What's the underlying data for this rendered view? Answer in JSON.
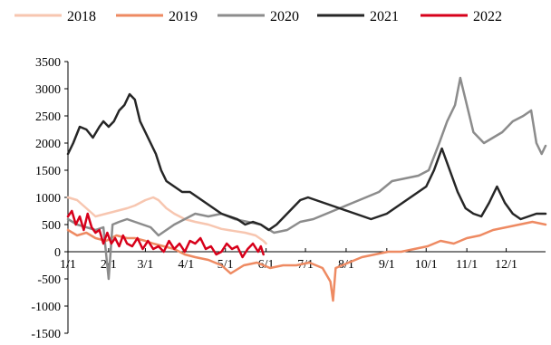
{
  "chart_data": {
    "type": "line",
    "x_ticks": [
      "1/1",
      "2/1",
      "3/1",
      "4/1",
      "5/1",
      "6/1",
      "7/1",
      "8/1",
      "9/1",
      "10/1",
      "11/1",
      "12/1"
    ],
    "x_domain": [
      1,
      365
    ],
    "ylim": [
      -1500,
      3500
    ],
    "y_ticks": [
      -1500,
      -1000,
      -500,
      0,
      500,
      1000,
      1500,
      2000,
      2500,
      3000,
      3500
    ],
    "legend_position": "top",
    "grid": false,
    "series": [
      {
        "name": "2018",
        "color": "#F7C6B0",
        "points": [
          [
            1,
            1000
          ],
          [
            8,
            950
          ],
          [
            15,
            800
          ],
          [
            22,
            650
          ],
          [
            30,
            700
          ],
          [
            38,
            750
          ],
          [
            46,
            800
          ],
          [
            52,
            850
          ],
          [
            60,
            950
          ],
          [
            66,
            1000
          ],
          [
            70,
            950
          ],
          [
            76,
            800
          ],
          [
            82,
            700
          ],
          [
            90,
            600
          ],
          [
            98,
            550
          ],
          [
            108,
            500
          ],
          [
            118,
            420
          ],
          [
            128,
            380
          ],
          [
            136,
            350
          ],
          [
            144,
            300
          ],
          [
            150,
            200
          ],
          [
            152,
            150
          ]
        ]
      },
      {
        "name": "2019",
        "color": "#EE8A62",
        "points": [
          [
            1,
            400
          ],
          [
            8,
            300
          ],
          [
            15,
            350
          ],
          [
            22,
            250
          ],
          [
            30,
            200
          ],
          [
            38,
            300
          ],
          [
            46,
            250
          ],
          [
            52,
            250
          ],
          [
            60,
            200
          ],
          [
            66,
            150
          ],
          [
            74,
            100
          ],
          [
            82,
            50
          ],
          [
            90,
            -50
          ],
          [
            98,
            -100
          ],
          [
            108,
            -150
          ],
          [
            118,
            -250
          ],
          [
            125,
            -400
          ],
          [
            135,
            -250
          ],
          [
            145,
            -200
          ],
          [
            155,
            -300
          ],
          [
            165,
            -250
          ],
          [
            175,
            -250
          ],
          [
            185,
            -200
          ],
          [
            195,
            -300
          ],
          [
            201,
            -550
          ],
          [
            203,
            -900
          ],
          [
            205,
            -300
          ],
          [
            215,
            -200
          ],
          [
            225,
            -100
          ],
          [
            235,
            -50
          ],
          [
            245,
            0
          ],
          [
            255,
            0
          ],
          [
            265,
            50
          ],
          [
            275,
            100
          ],
          [
            285,
            200
          ],
          [
            295,
            150
          ],
          [
            305,
            250
          ],
          [
            315,
            300
          ],
          [
            325,
            400
          ],
          [
            335,
            450
          ],
          [
            345,
            500
          ],
          [
            355,
            550
          ],
          [
            365,
            500
          ]
        ]
      },
      {
        "name": "2020",
        "color": "#8C8C8C",
        "points": [
          [
            1,
            600
          ],
          [
            8,
            500
          ],
          [
            15,
            450
          ],
          [
            22,
            400
          ],
          [
            28,
            450
          ],
          [
            32,
            -500
          ],
          [
            35,
            500
          ],
          [
            40,
            550
          ],
          [
            46,
            600
          ],
          [
            52,
            550
          ],
          [
            58,
            500
          ],
          [
            64,
            450
          ],
          [
            70,
            300
          ],
          [
            76,
            400
          ],
          [
            82,
            500
          ],
          [
            90,
            600
          ],
          [
            98,
            700
          ],
          [
            108,
            650
          ],
          [
            118,
            700
          ],
          [
            128,
            600
          ],
          [
            138,
            550
          ],
          [
            148,
            500
          ],
          [
            158,
            350
          ],
          [
            168,
            400
          ],
          [
            178,
            550
          ],
          [
            188,
            600
          ],
          [
            198,
            700
          ],
          [
            208,
            800
          ],
          [
            218,
            900
          ],
          [
            228,
            1000
          ],
          [
            238,
            1100
          ],
          [
            248,
            1300
          ],
          [
            258,
            1350
          ],
          [
            268,
            1400
          ],
          [
            276,
            1500
          ],
          [
            284,
            2000
          ],
          [
            290,
            2400
          ],
          [
            296,
            2700
          ],
          [
            300,
            3200
          ],
          [
            304,
            2800
          ],
          [
            310,
            2200
          ],
          [
            318,
            2000
          ],
          [
            325,
            2100
          ],
          [
            332,
            2200
          ],
          [
            340,
            2400
          ],
          [
            348,
            2500
          ],
          [
            354,
            2600
          ],
          [
            358,
            2000
          ],
          [
            362,
            1800
          ],
          [
            365,
            1950
          ]
        ]
      },
      {
        "name": "2021",
        "color": "#262626",
        "points": [
          [
            1,
            1800
          ],
          [
            5,
            2000
          ],
          [
            10,
            2300
          ],
          [
            15,
            2250
          ],
          [
            20,
            2100
          ],
          [
            25,
            2300
          ],
          [
            28,
            2400
          ],
          [
            32,
            2300
          ],
          [
            36,
            2400
          ],
          [
            40,
            2600
          ],
          [
            44,
            2700
          ],
          [
            48,
            2900
          ],
          [
            52,
            2800
          ],
          [
            56,
            2400
          ],
          [
            60,
            2200
          ],
          [
            64,
            2000
          ],
          [
            68,
            1800
          ],
          [
            72,
            1500
          ],
          [
            76,
            1300
          ],
          [
            82,
            1200
          ],
          [
            88,
            1100
          ],
          [
            94,
            1100
          ],
          [
            100,
            1000
          ],
          [
            106,
            900
          ],
          [
            112,
            800
          ],
          [
            118,
            700
          ],
          [
            124,
            650
          ],
          [
            130,
            600
          ],
          [
            136,
            500
          ],
          [
            142,
            550
          ],
          [
            148,
            500
          ],
          [
            154,
            400
          ],
          [
            160,
            500
          ],
          [
            166,
            650
          ],
          [
            172,
            800
          ],
          [
            178,
            950
          ],
          [
            184,
            1000
          ],
          [
            190,
            950
          ],
          [
            196,
            900
          ],
          [
            202,
            850
          ],
          [
            208,
            800
          ],
          [
            214,
            750
          ],
          [
            220,
            700
          ],
          [
            226,
            650
          ],
          [
            232,
            600
          ],
          [
            238,
            650
          ],
          [
            244,
            700
          ],
          [
            250,
            800
          ],
          [
            256,
            900
          ],
          [
            262,
            1000
          ],
          [
            268,
            1100
          ],
          [
            274,
            1200
          ],
          [
            280,
            1500
          ],
          [
            286,
            1900
          ],
          [
            292,
            1500
          ],
          [
            298,
            1100
          ],
          [
            304,
            800
          ],
          [
            310,
            700
          ],
          [
            316,
            650
          ],
          [
            322,
            900
          ],
          [
            328,
            1200
          ],
          [
            334,
            900
          ],
          [
            340,
            700
          ],
          [
            346,
            600
          ],
          [
            352,
            650
          ],
          [
            358,
            700
          ],
          [
            365,
            700
          ]
        ]
      },
      {
        "name": "2022",
        "color": "#D7001A",
        "points": [
          [
            1,
            650
          ],
          [
            4,
            750
          ],
          [
            7,
            500
          ],
          [
            10,
            650
          ],
          [
            13,
            400
          ],
          [
            16,
            700
          ],
          [
            19,
            450
          ],
          [
            22,
            350
          ],
          [
            25,
            400
          ],
          [
            28,
            150
          ],
          [
            31,
            350
          ],
          [
            34,
            150
          ],
          [
            37,
            250
          ],
          [
            40,
            100
          ],
          [
            43,
            300
          ],
          [
            46,
            150
          ],
          [
            50,
            100
          ],
          [
            54,
            250
          ],
          [
            58,
            50
          ],
          [
            62,
            200
          ],
          [
            66,
            50
          ],
          [
            70,
            100
          ],
          [
            74,
            0
          ],
          [
            78,
            200
          ],
          [
            82,
            50
          ],
          [
            86,
            150
          ],
          [
            90,
            0
          ],
          [
            94,
            200
          ],
          [
            98,
            150
          ],
          [
            102,
            250
          ],
          [
            106,
            50
          ],
          [
            110,
            100
          ],
          [
            114,
            -50
          ],
          [
            118,
            0
          ],
          [
            122,
            150
          ],
          [
            126,
            50
          ],
          [
            130,
            100
          ],
          [
            134,
            -100
          ],
          [
            138,
            50
          ],
          [
            142,
            150
          ],
          [
            146,
            0
          ],
          [
            148,
            100
          ],
          [
            150,
            -50
          ]
        ]
      }
    ]
  }
}
